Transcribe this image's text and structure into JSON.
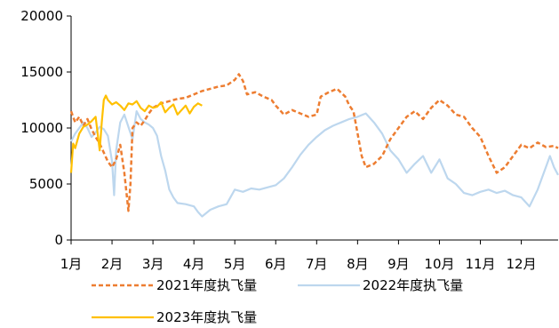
{
  "chart_data": {
    "type": "line",
    "title": "",
    "xlabel": "",
    "ylabel": "",
    "ylim": [
      0,
      20000
    ],
    "yticks": [
      0,
      5000,
      10000,
      15000,
      20000
    ],
    "xticks": [
      "1月",
      "2月",
      "3月",
      "4月",
      "5月",
      "6月",
      "7月",
      "8月",
      "9月",
      "10月",
      "11月",
      "12月"
    ],
    "x_unit": "month",
    "xlim": [
      1,
      12.9
    ],
    "grid": false,
    "legend_position": "bottom",
    "series": [
      {
        "name": "2021年度执飞量",
        "color": "#ED7D31",
        "dash": "dashed",
        "points": [
          [
            1.0,
            11500
          ],
          [
            1.1,
            10500
          ],
          [
            1.2,
            11000
          ],
          [
            1.3,
            10200
          ],
          [
            1.4,
            10800
          ],
          [
            1.5,
            9900
          ],
          [
            1.6,
            9200
          ],
          [
            1.7,
            8600
          ],
          [
            1.8,
            7800
          ],
          [
            1.9,
            7000
          ],
          [
            2.0,
            6500
          ],
          [
            2.1,
            7200
          ],
          [
            2.2,
            8500
          ],
          [
            2.3,
            6000
          ],
          [
            2.4,
            2600
          ],
          [
            2.45,
            5000
          ],
          [
            2.5,
            10000
          ],
          [
            2.6,
            10500
          ],
          [
            2.7,
            10200
          ],
          [
            2.8,
            10700
          ],
          [
            2.9,
            11300
          ],
          [
            3.0,
            11800
          ],
          [
            3.2,
            12200
          ],
          [
            3.4,
            12400
          ],
          [
            3.6,
            12600
          ],
          [
            3.8,
            12700
          ],
          [
            4.0,
            13000
          ],
          [
            4.2,
            13300
          ],
          [
            4.4,
            13500
          ],
          [
            4.6,
            13700
          ],
          [
            4.8,
            13800
          ],
          [
            5.0,
            14300
          ],
          [
            5.1,
            14800
          ],
          [
            5.2,
            14200
          ],
          [
            5.3,
            13000
          ],
          [
            5.5,
            13200
          ],
          [
            5.7,
            12800
          ],
          [
            5.9,
            12500
          ],
          [
            6.0,
            12000
          ],
          [
            6.2,
            11200
          ],
          [
            6.4,
            11600
          ],
          [
            6.6,
            11300
          ],
          [
            6.8,
            11000
          ],
          [
            7.0,
            11200
          ],
          [
            7.1,
            12800
          ],
          [
            7.3,
            13200
          ],
          [
            7.5,
            13500
          ],
          [
            7.7,
            12800
          ],
          [
            7.8,
            12000
          ],
          [
            7.9,
            11500
          ],
          [
            8.0,
            9500
          ],
          [
            8.1,
            7500
          ],
          [
            8.2,
            6500
          ],
          [
            8.4,
            6800
          ],
          [
            8.6,
            7500
          ],
          [
            8.8,
            9000
          ],
          [
            9.0,
            10000
          ],
          [
            9.2,
            11000
          ],
          [
            9.4,
            11500
          ],
          [
            9.6,
            10800
          ],
          [
            9.8,
            11800
          ],
          [
            10.0,
            12500
          ],
          [
            10.2,
            12000
          ],
          [
            10.4,
            11200
          ],
          [
            10.6,
            11000
          ],
          [
            10.8,
            10000
          ],
          [
            11.0,
            9200
          ],
          [
            11.2,
            7500
          ],
          [
            11.4,
            6000
          ],
          [
            11.6,
            6500
          ],
          [
            11.8,
            7500
          ],
          [
            12.0,
            8500
          ],
          [
            12.2,
            8200
          ],
          [
            12.4,
            8700
          ],
          [
            12.6,
            8300
          ],
          [
            12.8,
            8400
          ],
          [
            12.9,
            8200
          ]
        ]
      },
      {
        "name": "2022年度执飞量",
        "color": "#BDD7EE",
        "dash": "solid",
        "points": [
          [
            1.0,
            8800
          ],
          [
            1.1,
            9500
          ],
          [
            1.2,
            10000
          ],
          [
            1.3,
            10500
          ],
          [
            1.4,
            10000
          ],
          [
            1.5,
            9200
          ],
          [
            1.6,
            9600
          ],
          [
            1.7,
            10100
          ],
          [
            1.8,
            9900
          ],
          [
            1.9,
            9300
          ],
          [
            2.0,
            7000
          ],
          [
            2.05,
            4000
          ],
          [
            2.1,
            8000
          ],
          [
            2.2,
            10500
          ],
          [
            2.3,
            11200
          ],
          [
            2.5,
            9000
          ],
          [
            2.6,
            11500
          ],
          [
            2.7,
            10800
          ],
          [
            2.8,
            10500
          ],
          [
            2.9,
            10300
          ],
          [
            3.0,
            10000
          ],
          [
            3.1,
            9300
          ],
          [
            3.2,
            7500
          ],
          [
            3.3,
            6200
          ],
          [
            3.4,
            4500
          ],
          [
            3.5,
            3800
          ],
          [
            3.6,
            3300
          ],
          [
            3.8,
            3200
          ],
          [
            4.0,
            3000
          ],
          [
            4.1,
            2500
          ],
          [
            4.2,
            2100
          ],
          [
            4.4,
            2700
          ],
          [
            4.6,
            3000
          ],
          [
            4.8,
            3200
          ],
          [
            5.0,
            4500
          ],
          [
            5.2,
            4300
          ],
          [
            5.4,
            4600
          ],
          [
            5.6,
            4500
          ],
          [
            5.8,
            4700
          ],
          [
            6.0,
            4900
          ],
          [
            6.2,
            5500
          ],
          [
            6.4,
            6500
          ],
          [
            6.6,
            7600
          ],
          [
            6.8,
            8500
          ],
          [
            7.0,
            9200
          ],
          [
            7.2,
            9800
          ],
          [
            7.4,
            10200
          ],
          [
            7.6,
            10500
          ],
          [
            7.8,
            10800
          ],
          [
            8.0,
            11000
          ],
          [
            8.2,
            11300
          ],
          [
            8.4,
            10500
          ],
          [
            8.6,
            9500
          ],
          [
            8.8,
            8000
          ],
          [
            9.0,
            7200
          ],
          [
            9.2,
            6000
          ],
          [
            9.4,
            6800
          ],
          [
            9.6,
            7500
          ],
          [
            9.8,
            6000
          ],
          [
            10.0,
            7200
          ],
          [
            10.2,
            5500
          ],
          [
            10.4,
            5000
          ],
          [
            10.6,
            4200
          ],
          [
            10.8,
            4000
          ],
          [
            11.0,
            4300
          ],
          [
            11.2,
            4500
          ],
          [
            11.4,
            4200
          ],
          [
            11.6,
            4400
          ],
          [
            11.8,
            4000
          ],
          [
            12.0,
            3800
          ],
          [
            12.2,
            3000
          ],
          [
            12.4,
            4500
          ],
          [
            12.6,
            6500
          ],
          [
            12.7,
            7500
          ],
          [
            12.8,
            6500
          ],
          [
            12.9,
            5800
          ]
        ]
      },
      {
        "name": "2023年度执飞量",
        "color": "#FFC000",
        "dash": "solid",
        "points": [
          [
            1.0,
            6000
          ],
          [
            1.05,
            8600
          ],
          [
            1.1,
            8200
          ],
          [
            1.2,
            9500
          ],
          [
            1.3,
            10100
          ],
          [
            1.4,
            10300
          ],
          [
            1.5,
            10600
          ],
          [
            1.6,
            11000
          ],
          [
            1.7,
            8000
          ],
          [
            1.75,
            10500
          ],
          [
            1.8,
            12500
          ],
          [
            1.85,
            12900
          ],
          [
            1.9,
            12500
          ],
          [
            2.0,
            12100
          ],
          [
            2.1,
            12300
          ],
          [
            2.2,
            12000
          ],
          [
            2.3,
            11600
          ],
          [
            2.4,
            12200
          ],
          [
            2.5,
            12100
          ],
          [
            2.6,
            12400
          ],
          [
            2.7,
            11800
          ],
          [
            2.8,
            11500
          ],
          [
            2.9,
            12000
          ],
          [
            3.0,
            11800
          ],
          [
            3.1,
            11900
          ],
          [
            3.2,
            12300
          ],
          [
            3.3,
            11400
          ],
          [
            3.4,
            11800
          ],
          [
            3.5,
            12100
          ],
          [
            3.6,
            11200
          ],
          [
            3.7,
            11600
          ],
          [
            3.8,
            12000
          ],
          [
            3.9,
            11300
          ],
          [
            4.0,
            11900
          ],
          [
            4.1,
            12200
          ],
          [
            4.2,
            12000
          ]
        ]
      }
    ]
  }
}
